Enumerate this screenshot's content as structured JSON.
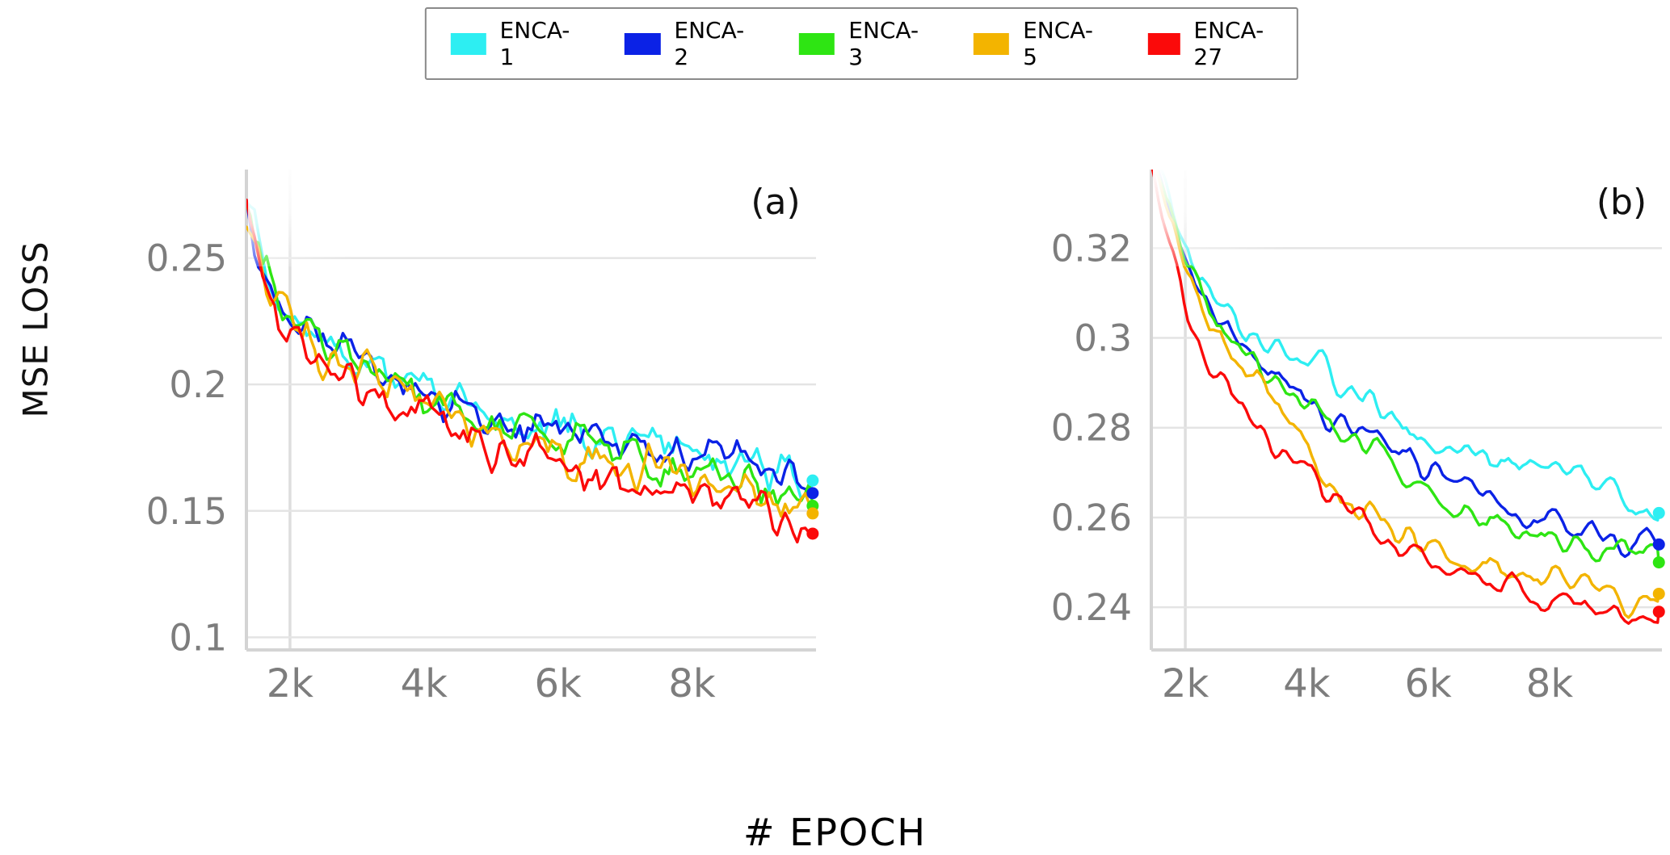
{
  "page": {
    "ylabel": "MSE LOSS",
    "xlabel": "# EPOCH"
  },
  "legend": {
    "entries": [
      {
        "label": "ENCA-1",
        "color": "#2deef2"
      },
      {
        "label": "ENCA-2",
        "color": "#0b22e6"
      },
      {
        "label": "ENCA-3",
        "color": "#2ee513"
      },
      {
        "label": "ENCA-5",
        "color": "#f3b400"
      },
      {
        "label": "ENCA-27",
        "color": "#fb0a0a"
      }
    ]
  },
  "style": {
    "tick_color": "#7d7d7d",
    "spine_color": "#d4d4d4",
    "grid_color": "#e4e4e4",
    "vgrid_color": "#dedede",
    "panel_label_color": "#111111"
  },
  "chart_data": [
    {
      "type": "line",
      "panel_label": "(a)",
      "xlabel": "# EPOCH",
      "ylabel": "MSE LOSS",
      "xlim": [
        1350,
        9850
      ],
      "ylim": [
        0.095,
        0.285
      ],
      "xticks": {
        "values": [
          2000,
          4000,
          6000,
          8000
        ],
        "labels": [
          "2k",
          "4k",
          "6k",
          "8k"
        ]
      },
      "yticks": {
        "values": [
          0.1,
          0.15,
          0.2,
          0.25
        ],
        "labels": [
          "0.1",
          "0.15",
          "0.2",
          "0.25"
        ]
      },
      "grid": {
        "horizontal": true,
        "vertical_at": [
          2000
        ]
      },
      "noise_amp": 0.013,
      "noise_smooth": 1,
      "sample_step": 60,
      "x": [
        1000,
        1500,
        2000,
        2500,
        3000,
        3500,
        4000,
        4500,
        5000,
        5500,
        6000,
        6500,
        7000,
        7500,
        8000,
        8500,
        9000,
        9500,
        9800
      ],
      "series": [
        {
          "name": "ENCA-1",
          "color": "#2deef2",
          "values": [
            0.31,
            0.262,
            0.228,
            0.219,
            0.212,
            0.205,
            0.199,
            0.193,
            0.189,
            0.185,
            0.182,
            0.18,
            0.178,
            0.176,
            0.174,
            0.171,
            0.168,
            0.165,
            0.162
          ]
        },
        {
          "name": "ENCA-2",
          "color": "#0b22e6",
          "values": [
            0.308,
            0.258,
            0.227,
            0.218,
            0.211,
            0.204,
            0.198,
            0.192,
            0.187,
            0.183,
            0.18,
            0.177,
            0.175,
            0.173,
            0.171,
            0.168,
            0.165,
            0.161,
            0.157
          ]
        },
        {
          "name": "ENCA-3",
          "color": "#2ee513",
          "values": [
            0.305,
            0.255,
            0.224,
            0.215,
            0.208,
            0.201,
            0.195,
            0.189,
            0.184,
            0.18,
            0.177,
            0.174,
            0.172,
            0.169,
            0.167,
            0.164,
            0.161,
            0.156,
            0.152
          ]
        },
        {
          "name": "ENCA-5",
          "color": "#f3b400",
          "values": [
            0.303,
            0.252,
            0.222,
            0.213,
            0.206,
            0.199,
            0.192,
            0.186,
            0.181,
            0.177,
            0.174,
            0.171,
            0.168,
            0.166,
            0.163,
            0.161,
            0.158,
            0.152,
            0.149
          ]
        },
        {
          "name": "ENCA-27",
          "color": "#fb0a0a",
          "values": [
            0.3,
            0.25,
            0.22,
            0.21,
            0.202,
            0.194,
            0.187,
            0.181,
            0.176,
            0.172,
            0.169,
            0.166,
            0.163,
            0.16,
            0.157,
            0.154,
            0.151,
            0.146,
            0.141
          ]
        }
      ]
    },
    {
      "type": "line",
      "panel_label": "(b)",
      "xlabel": "# EPOCH",
      "ylabel": "MSE LOSS",
      "xlim": [
        1440,
        9850
      ],
      "ylim": [
        0.2305,
        0.3375
      ],
      "xticks": {
        "values": [
          2000,
          4000,
          6000,
          8000
        ],
        "labels": [
          "2k",
          "4k",
          "6k",
          "8k"
        ]
      },
      "yticks": {
        "values": [
          0.24,
          0.26,
          0.28,
          0.3,
          0.32
        ],
        "labels": [
          "0.24",
          "0.26",
          "0.28",
          "0.3",
          "0.32"
        ]
      },
      "grid": {
        "horizontal": true,
        "vertical_at": [
          2000
        ]
      },
      "noise_amp": 0.006,
      "noise_smooth": 2,
      "sample_step": 60,
      "x": [
        1000,
        1500,
        2000,
        2500,
        3000,
        3500,
        4000,
        4500,
        5000,
        5500,
        6000,
        6500,
        7000,
        7500,
        8000,
        8500,
        9000,
        9500,
        9800
      ],
      "series": [
        {
          "name": "ENCA-1",
          "color": "#2deef2",
          "values": [
            0.36,
            0.341,
            0.32,
            0.309,
            0.301,
            0.299,
            0.296,
            0.29,
            0.285,
            0.281,
            0.278,
            0.276,
            0.273,
            0.271,
            0.269,
            0.272,
            0.266,
            0.262,
            0.261
          ]
        },
        {
          "name": "ENCA-2",
          "color": "#0b22e6",
          "values": [
            0.358,
            0.339,
            0.318,
            0.306,
            0.297,
            0.291,
            0.286,
            0.281,
            0.277,
            0.274,
            0.272,
            0.268,
            0.263,
            0.26,
            0.258,
            0.257,
            0.256,
            0.255,
            0.254
          ]
        },
        {
          "name": "ENCA-3",
          "color": "#2ee513",
          "values": [
            0.357,
            0.338,
            0.317,
            0.305,
            0.296,
            0.29,
            0.285,
            0.28,
            0.275,
            0.271,
            0.266,
            0.261,
            0.258,
            0.256,
            0.255,
            0.254,
            0.253,
            0.252,
            0.25
          ]
        },
        {
          "name": "ENCA-5",
          "color": "#f3b400",
          "values": [
            0.356,
            0.337,
            0.315,
            0.303,
            0.293,
            0.285,
            0.275,
            0.266,
            0.261,
            0.257,
            0.254,
            0.251,
            0.249,
            0.247,
            0.246,
            0.244,
            0.243,
            0.242,
            0.243
          ]
        },
        {
          "name": "ENCA-27",
          "color": "#fb0a0a",
          "values": [
            0.352,
            0.332,
            0.305,
            0.292,
            0.283,
            0.276,
            0.269,
            0.263,
            0.258,
            0.253,
            0.25,
            0.247,
            0.245,
            0.243,
            0.242,
            0.241,
            0.24,
            0.239,
            0.239
          ]
        }
      ]
    }
  ]
}
